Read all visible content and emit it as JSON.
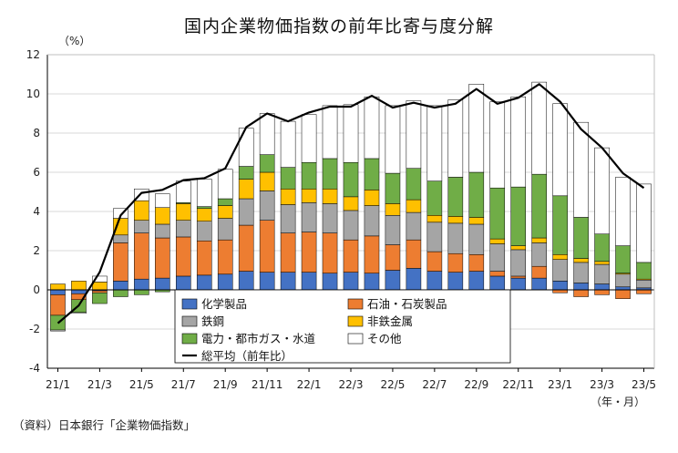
{
  "title": "国内企業物価指数の前年比寄与度分解",
  "y_unit": "（%）",
  "x_unit_note": "（年・月）",
  "source": "（資料）日本銀行「企業物価指数」",
  "colors": {
    "chem": "#4472c4",
    "oil": "#ed7d31",
    "steel": "#a5a5a5",
    "nonferrous": "#ffc000",
    "utility": "#70ad47",
    "other": "#ffffff",
    "line": "#000000",
    "grid": "#d9d9d9"
  },
  "chart_data": {
    "type": "bar",
    "stacked": true,
    "title": "国内企業物価指数の前年比寄与度分解",
    "ylabel": "（%）",
    "ylim": [
      -4,
      12
    ],
    "yticks": [
      -4,
      -2,
      0,
      2,
      4,
      6,
      8,
      10,
      12
    ],
    "grid": true,
    "xticks": [
      "21/1",
      "21/3",
      "21/5",
      "21/7",
      "21/9",
      "21/11",
      "22/1",
      "22/3",
      "22/5",
      "22/7",
      "22/9",
      "22/11",
      "23/1",
      "23/3",
      "23/5"
    ],
    "categories": [
      "21/1",
      "21/2",
      "21/3",
      "21/4",
      "21/5",
      "21/6",
      "21/7",
      "21/8",
      "21/9",
      "21/10",
      "21/11",
      "21/12",
      "22/1",
      "22/2",
      "22/3",
      "22/4",
      "22/5",
      "22/6",
      "22/7",
      "22/8",
      "22/9",
      "22/10",
      "22/11",
      "22/12",
      "23/1",
      "23/2",
      "23/3",
      "23/4",
      "23/5"
    ],
    "series": [
      {
        "name": "化学製品",
        "key": "chem",
        "values": [
          -0.25,
          -0.2,
          -0.05,
          0.45,
          0.55,
          0.6,
          0.7,
          0.75,
          0.8,
          0.95,
          0.9,
          0.9,
          0.9,
          0.85,
          0.9,
          0.85,
          1.0,
          1.1,
          0.95,
          0.9,
          0.95,
          0.7,
          0.6,
          0.6,
          0.45,
          0.35,
          0.3,
          0.15,
          0.1
        ]
      },
      {
        "name": "石油・石炭製品",
        "key": "oil",
        "values": [
          -1.05,
          -0.3,
          -0.1,
          1.95,
          2.35,
          2.05,
          2.0,
          1.75,
          1.75,
          2.35,
          2.65,
          2.0,
          2.05,
          2.05,
          1.65,
          1.9,
          1.3,
          1.45,
          1.0,
          0.95,
          0.85,
          0.25,
          0.1,
          0.6,
          -0.15,
          -0.35,
          -0.25,
          -0.45,
          -0.2
        ]
      },
      {
        "name": "鉄鋼",
        "key": "steel",
        "values": [
          0.0,
          0.0,
          0.0,
          0.4,
          0.65,
          0.7,
          0.85,
          1.0,
          1.1,
          1.35,
          1.5,
          1.45,
          1.5,
          1.5,
          1.5,
          1.55,
          1.5,
          1.4,
          1.5,
          1.55,
          1.55,
          1.4,
          1.35,
          1.2,
          1.1,
          1.05,
          1.0,
          0.65,
          0.4
        ]
      },
      {
        "name": "非鉄金属",
        "key": "nonferrous",
        "values": [
          0.3,
          0.45,
          0.4,
          0.85,
          1.0,
          0.85,
          0.85,
          0.65,
          0.65,
          1.0,
          0.95,
          0.8,
          0.7,
          0.75,
          0.7,
          0.8,
          0.6,
          0.65,
          0.35,
          0.35,
          0.35,
          0.25,
          0.2,
          0.25,
          0.25,
          0.2,
          0.15,
          0.05,
          0.05
        ]
      },
      {
        "name": "電力・都市ガス・水道",
        "key": "utility",
        "values": [
          -0.75,
          -0.65,
          -0.55,
          -0.35,
          -0.25,
          -0.1,
          0.05,
          0.1,
          0.35,
          0.65,
          0.9,
          1.1,
          1.35,
          1.55,
          1.75,
          1.6,
          1.55,
          1.6,
          1.75,
          2.0,
          2.3,
          2.6,
          3.0,
          3.25,
          3.0,
          2.1,
          1.4,
          1.4,
          0.85
        ]
      },
      {
        "name": "その他",
        "key": "other",
        "values": [
          -0.05,
          -0.05,
          0.3,
          0.5,
          0.6,
          0.7,
          1.1,
          1.4,
          1.5,
          1.95,
          2.1,
          2.35,
          2.45,
          2.7,
          2.95,
          3.15,
          3.45,
          3.45,
          3.85,
          3.95,
          4.5,
          4.4,
          4.6,
          4.7,
          4.7,
          4.85,
          4.4,
          3.5,
          4.0
        ]
      }
    ],
    "line": {
      "name": "総平均（前年比）",
      "values": [
        -1.7,
        -0.8,
        0.9,
        3.8,
        4.95,
        5.1,
        5.6,
        5.7,
        6.2,
        8.3,
        9.0,
        8.6,
        9.05,
        9.35,
        9.35,
        9.9,
        9.3,
        9.55,
        9.3,
        9.5,
        10.25,
        9.5,
        9.8,
        10.5,
        9.6,
        8.2,
        7.25,
        5.95,
        5.2
      ]
    },
    "legend": {
      "position": "bottom-left",
      "entries": [
        "化学製品",
        "石油・石炭製品",
        "鉄鋼",
        "非鉄金属",
        "電力・都市ガス・水道",
        "その他",
        "総平均（前年比）"
      ]
    }
  }
}
